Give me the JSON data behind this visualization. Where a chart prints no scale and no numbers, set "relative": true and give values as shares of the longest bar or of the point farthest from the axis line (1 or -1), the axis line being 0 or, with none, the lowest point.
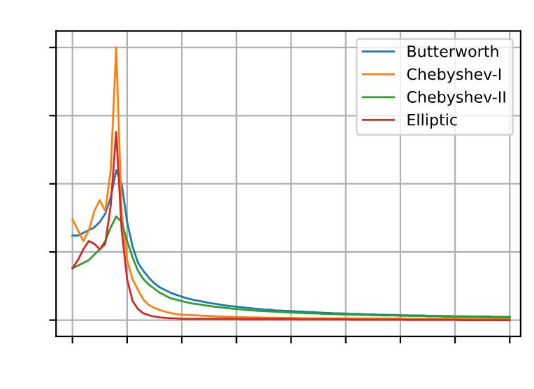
{
  "chart_data": {
    "type": "line",
    "relative": true,
    "grid": true,
    "legend": "top right",
    "tick_labels": false,
    "categories": [
      null,
      null,
      null,
      null,
      null,
      null,
      null,
      null,
      null,
      null,
      null,
      null,
      null,
      null,
      null,
      null,
      null,
      null,
      null,
      null,
      null,
      null,
      null,
      null,
      null,
      null,
      null,
      null,
      null,
      null,
      null,
      null,
      null,
      null,
      null,
      null,
      null,
      null,
      null,
      null,
      null,
      null,
      null,
      null,
      null,
      null,
      null,
      null,
      null,
      null,
      null,
      null,
      null,
      null,
      null,
      null,
      null,
      null,
      null,
      null,
      null,
      null,
      null,
      null,
      null,
      null,
      null,
      null,
      null,
      null,
      null,
      null,
      null,
      null,
      null,
      null,
      null,
      null,
      null,
      null,
      null
    ],
    "series": [
      {
        "name": "Butterworth",
        "color": "#1f77b4",
        "values": [
          0.31,
          0.31,
          0.32,
          0.33,
          0.34,
          0.36,
          0.39,
          0.45,
          0.55,
          0.5,
          0.36,
          0.27,
          0.21,
          0.18,
          0.155,
          0.135,
          0.12,
          0.11,
          0.1,
          0.093,
          0.086,
          0.08,
          0.075,
          0.071,
          0.067,
          0.063,
          0.06,
          0.057,
          0.054,
          0.051,
          0.049,
          0.047,
          0.045,
          0.043,
          0.041,
          0.039,
          0.038,
          0.036,
          0.035,
          0.034,
          0.033,
          0.032,
          0.031,
          0.03,
          0.029,
          0.028,
          0.027,
          0.026,
          0.025,
          0.025,
          0.024,
          0.023,
          0.023,
          0.022,
          0.021,
          0.021,
          0.02,
          0.02,
          0.019,
          0.019,
          0.018,
          0.018,
          0.017,
          0.017,
          0.017,
          0.016,
          0.016,
          0.015,
          0.015,
          0.015,
          0.014,
          0.014,
          0.014,
          0.013,
          0.013,
          0.013,
          0.013,
          0.012,
          0.012,
          0.012,
          0.012
        ]
      },
      {
        "name": "Chebyshev-I",
        "color": "#ff7f0e",
        "values": [
          0.37,
          0.33,
          0.29,
          0.33,
          0.4,
          0.44,
          0.4,
          0.55,
          1.0,
          0.39,
          0.22,
          0.15,
          0.11,
          0.075,
          0.055,
          0.045,
          0.037,
          0.031,
          0.026,
          0.022,
          0.02,
          0.019,
          0.018,
          0.017,
          0.016,
          0.015,
          0.014,
          0.013,
          0.012,
          0.012,
          0.011,
          0.011,
          0.01,
          0.01,
          0.01,
          0.009,
          0.009,
          0.009,
          0.008,
          0.008,
          0.008,
          0.008,
          0.007,
          0.007,
          0.007,
          0.007,
          0.007,
          0.006,
          0.006,
          0.006,
          0.006,
          0.006,
          0.006,
          0.006,
          0.006,
          0.006,
          0.006,
          0.006,
          0.006,
          0.006,
          0.006,
          0.005,
          0.005,
          0.005,
          0.005,
          0.005,
          0.005,
          0.005,
          0.005,
          0.005,
          0.005,
          0.005,
          0.005,
          0.005,
          0.005,
          0.005,
          0.005,
          0.005,
          0.005,
          0.005,
          0.005
        ]
      },
      {
        "name": "Chebyshev-II",
        "color": "#2ca02c",
        "values": [
          0.19,
          0.2,
          0.21,
          0.22,
          0.24,
          0.26,
          0.29,
          0.34,
          0.38,
          0.36,
          0.29,
          0.23,
          0.18,
          0.15,
          0.13,
          0.115,
          0.1,
          0.09,
          0.08,
          0.075,
          0.07,
          0.065,
          0.061,
          0.058,
          0.055,
          0.052,
          0.049,
          0.047,
          0.045,
          0.043,
          0.041,
          0.039,
          0.037,
          0.036,
          0.034,
          0.033,
          0.032,
          0.031,
          0.03,
          0.029,
          0.028,
          0.027,
          0.026,
          0.025,
          0.025,
          0.024,
          0.023,
          0.022,
          0.022,
          0.021,
          0.021,
          0.02,
          0.02,
          0.019,
          0.019,
          0.018,
          0.018,
          0.017,
          0.017,
          0.017,
          0.016,
          0.016,
          0.015,
          0.015,
          0.015,
          0.014,
          0.014,
          0.014,
          0.013,
          0.013,
          0.013,
          0.012,
          0.012,
          0.012,
          0.012,
          0.011,
          0.011,
          0.011,
          0.011,
          0.01,
          0.01
        ]
      },
      {
        "name": "Elliptic",
        "color": "#d62728",
        "values": [
          0.19,
          0.22,
          0.26,
          0.29,
          0.28,
          0.26,
          0.28,
          0.42,
          0.69,
          0.33,
          0.15,
          0.07,
          0.04,
          0.025,
          0.018,
          0.013,
          0.01,
          0.008,
          0.007,
          0.006,
          0.005,
          0.005,
          0.005,
          0.005,
          0.005,
          0.005,
          0.005,
          0.005,
          0.005,
          0.005,
          0.005,
          0.004,
          0.004,
          0.004,
          0.004,
          0.004,
          0.004,
          0.004,
          0.004,
          0.004,
          0.004,
          0.003,
          0.003,
          0.003,
          0.003,
          0.003,
          0.003,
          0.003,
          0.003,
          0.003,
          0.003,
          0.002,
          0.002,
          0.002,
          0.002,
          0.002,
          0.002,
          0.002,
          0.002,
          0.002,
          0.002,
          0.001,
          0.001,
          0.001,
          0.001,
          0.001,
          0.001,
          0.001,
          0.001,
          0.001,
          0.001,
          0,
          0,
          0,
          0,
          0,
          0,
          0,
          0,
          0,
          0
        ]
      }
    ]
  }
}
